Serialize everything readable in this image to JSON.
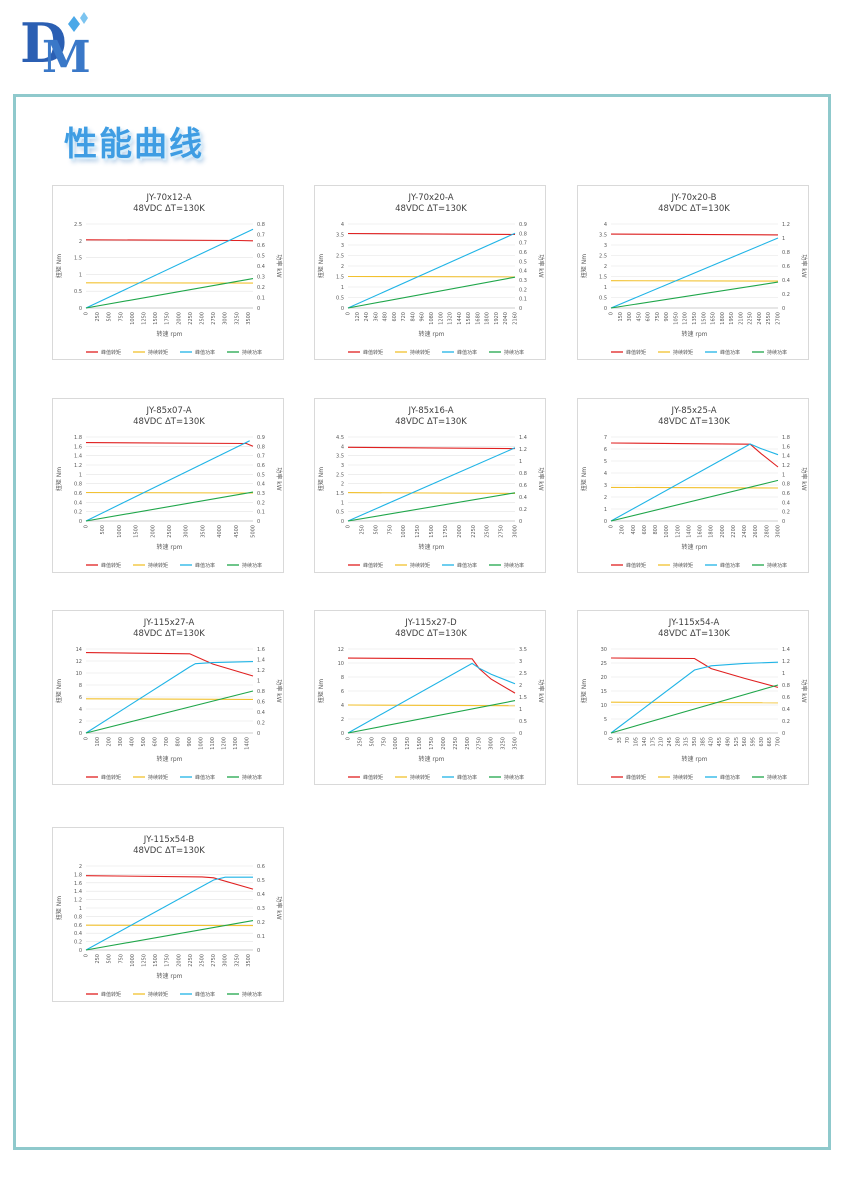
{
  "page": {
    "heading": "性能曲线",
    "logo_text": "DM",
    "colors": {
      "frame": "#8fc9cc",
      "logo": "#2b5fb3",
      "heading": "#3f9de3"
    }
  },
  "legend_labels": [
    "峰值转矩",
    "持续转矩",
    "峰值功率",
    "持续功率"
  ],
  "series_colors": [
    "#e02020",
    "#f2c12e",
    "#1fb4e6",
    "#1fa64a"
  ],
  "chart_data": [
    {
      "type": "line",
      "title": "JY-70x12-A",
      "subtitle": "48VDC ΔT=130K",
      "xlabel": "转速 rpm",
      "ylabel": "扭矩 Nm",
      "y2label": "功率 kW",
      "x_ticks": [
        "0",
        "250",
        "500",
        "750",
        "1000",
        "1250",
        "1500",
        "1750",
        "2000",
        "2250",
        "2500",
        "2750",
        "3000",
        "3250",
        "3500"
      ],
      "xlim": [
        0,
        3600
      ],
      "y_ticks": [
        "0",
        "0.5",
        "1",
        "1.5",
        "2",
        "2.5"
      ],
      "ylim": [
        0,
        2.5
      ],
      "y2_ticks": [
        "0",
        "0.1",
        "0.2",
        "0.3",
        "0.4",
        "0.5",
        "0.6",
        "0.7",
        "0.8"
      ],
      "y2lim": [
        0,
        0.8
      ],
      "series": [
        {
          "name": "峰值转矩",
          "axis": "left",
          "x": [
            0,
            3300,
            3600
          ],
          "y": [
            2.03,
            2.01,
            2.0
          ]
        },
        {
          "name": "持续转矩",
          "axis": "left",
          "x": [
            0,
            3600
          ],
          "y": [
            0.75,
            0.74
          ]
        },
        {
          "name": "峰值功率",
          "axis": "right",
          "x": [
            0,
            3600
          ],
          "y": [
            0,
            0.75
          ]
        },
        {
          "name": "持续功率",
          "axis": "right",
          "x": [
            0,
            3600
          ],
          "y": [
            0,
            0.28
          ]
        }
      ]
    },
    {
      "type": "line",
      "title": "JY-70x20-A",
      "subtitle": "48VDC ΔT=130K",
      "xlabel": "转速 rpm",
      "ylabel": "扭矩 Nm",
      "y2label": "功率 kW",
      "x_ticks": [
        "0",
        "120",
        "240",
        "360",
        "480",
        "600",
        "720",
        "840",
        "960",
        "1080",
        "1200",
        "1320",
        "1440",
        "1560",
        "1680",
        "1800",
        "1920",
        "2040",
        "2160"
      ],
      "xlim": [
        0,
        2160
      ],
      "y_ticks": [
        "0",
        "0.5",
        "1",
        "1.5",
        "2",
        "2.5",
        "3",
        "3.5",
        "4"
      ],
      "ylim": [
        0,
        4
      ],
      "y2_ticks": [
        "0",
        "0.1",
        "0.2",
        "0.3",
        "0.4",
        "0.5",
        "0.6",
        "0.7",
        "0.8",
        "0.9"
      ],
      "y2lim": [
        0,
        0.9
      ],
      "series": [
        {
          "name": "峰值转矩",
          "axis": "left",
          "x": [
            0,
            2160
          ],
          "y": [
            3.55,
            3.5
          ]
        },
        {
          "name": "持续转矩",
          "axis": "left",
          "x": [
            0,
            2160
          ],
          "y": [
            1.5,
            1.48
          ]
        },
        {
          "name": "峰值功率",
          "axis": "right",
          "x": [
            0,
            2160
          ],
          "y": [
            0,
            0.8
          ]
        },
        {
          "name": "持续功率",
          "axis": "right",
          "x": [
            0,
            2160
          ],
          "y": [
            0,
            0.33
          ]
        }
      ]
    },
    {
      "type": "line",
      "title": "JY-70x20-B",
      "subtitle": "48VDC ΔT=130K",
      "xlabel": "转速 rpm",
      "ylabel": "扭矩 Nm",
      "y2label": "功率 kW",
      "x_ticks": [
        "0",
        "150",
        "300",
        "450",
        "600",
        "750",
        "900",
        "1050",
        "1200",
        "1350",
        "1500",
        "1650",
        "1800",
        "1950",
        "2100",
        "2250",
        "2400",
        "2550",
        "2700"
      ],
      "xlim": [
        0,
        2700
      ],
      "y_ticks": [
        "0",
        "0.5",
        "1",
        "1.5",
        "2",
        "2.5",
        "3",
        "3.5",
        "4"
      ],
      "ylim": [
        0,
        4
      ],
      "y2_ticks": [
        "0",
        "0.2",
        "0.4",
        "0.6",
        "0.8",
        "1",
        "1.2"
      ],
      "y2lim": [
        0,
        1.2
      ],
      "series": [
        {
          "name": "峰值转矩",
          "axis": "left",
          "x": [
            0,
            2700
          ],
          "y": [
            3.52,
            3.48
          ]
        },
        {
          "name": "持续转矩",
          "axis": "left",
          "x": [
            0,
            2700
          ],
          "y": [
            1.3,
            1.28
          ]
        },
        {
          "name": "峰值功率",
          "axis": "right",
          "x": [
            0,
            2700
          ],
          "y": [
            0,
            1.0
          ]
        },
        {
          "name": "持续功率",
          "axis": "right",
          "x": [
            0,
            2700
          ],
          "y": [
            0,
            0.37
          ]
        }
      ]
    },
    {
      "type": "line",
      "title": "JY-85x07-A",
      "subtitle": "48VDC ΔT=130K",
      "xlabel": "转速 rpm",
      "ylabel": "扭矩 Nm",
      "y2label": "功率 kW",
      "x_ticks": [
        "0",
        "500",
        "1000",
        "1500",
        "2000",
        "2500",
        "3000",
        "3500",
        "4000",
        "4500",
        "5000"
      ],
      "xlim": [
        0,
        5000
      ],
      "y_ticks": [
        "0",
        "0.2",
        "0.4",
        "0.6",
        "0.8",
        "1",
        "1.2",
        "1.4",
        "1.6",
        "1.8"
      ],
      "ylim": [
        0,
        1.8
      ],
      "y2_ticks": [
        "0",
        "0.1",
        "0.2",
        "0.3",
        "0.4",
        "0.5",
        "0.6",
        "0.7",
        "0.8",
        "0.9"
      ],
      "y2lim": [
        0,
        0.9
      ],
      "series": [
        {
          "name": "峰值转矩",
          "axis": "left",
          "x": [
            0,
            4800,
            5000
          ],
          "y": [
            1.68,
            1.66,
            1.6
          ]
        },
        {
          "name": "持续转矩",
          "axis": "left",
          "x": [
            0,
            5000
          ],
          "y": [
            0.61,
            0.6
          ]
        },
        {
          "name": "峰值功率",
          "axis": "right",
          "x": [
            0,
            4900
          ],
          "y": [
            0,
            0.86
          ]
        },
        {
          "name": "持续功率",
          "axis": "right",
          "x": [
            0,
            5000
          ],
          "y": [
            0,
            0.31
          ]
        }
      ]
    },
    {
      "type": "line",
      "title": "JY-85x16-A",
      "subtitle": "48VDC ΔT=130K",
      "xlabel": "转速 rpm",
      "ylabel": "扭矩 Nm",
      "y2label": "功率 kW",
      "x_ticks": [
        "0",
        "250",
        "500",
        "750",
        "1000",
        "1250",
        "1500",
        "1750",
        "2000",
        "2250",
        "2500",
        "2750",
        "3000"
      ],
      "xlim": [
        0,
        3000
      ],
      "y_ticks": [
        "0",
        "0.5",
        "1",
        "1.5",
        "2",
        "2.5",
        "3",
        "3.5",
        "4",
        "4.5"
      ],
      "ylim": [
        0,
        4.5
      ],
      "y2_ticks": [
        "0",
        "0.2",
        "0.4",
        "0.6",
        "0.8",
        "1",
        "1.2",
        "1.4"
      ],
      "y2lim": [
        0,
        1.4
      ],
      "series": [
        {
          "name": "峰值转矩",
          "axis": "left",
          "x": [
            0,
            3000
          ],
          "y": [
            3.95,
            3.88
          ]
        },
        {
          "name": "持续转矩",
          "axis": "left",
          "x": [
            0,
            3000
          ],
          "y": [
            1.52,
            1.48
          ]
        },
        {
          "name": "峰值功率",
          "axis": "right",
          "x": [
            0,
            3000
          ],
          "y": [
            0,
            1.22
          ]
        },
        {
          "name": "持续功率",
          "axis": "right",
          "x": [
            0,
            3000
          ],
          "y": [
            0,
            0.47
          ]
        }
      ]
    },
    {
      "type": "line",
      "title": "JY-85x25-A",
      "subtitle": "48VDC ΔT=130K",
      "xlabel": "转速 rpm",
      "ylabel": "扭矩 Nm",
      "y2label": "功率 kW",
      "x_ticks": [
        "0",
        "200",
        "400",
        "600",
        "800",
        "1000",
        "1200",
        "1400",
        "1600",
        "1800",
        "2000",
        "2200",
        "2400",
        "2600",
        "2800",
        "3000"
      ],
      "xlim": [
        0,
        3000
      ],
      "y_ticks": [
        "0",
        "1",
        "2",
        "3",
        "4",
        "5",
        "6",
        "7"
      ],
      "ylim": [
        0,
        7
      ],
      "y2_ticks": [
        "0",
        "0.2",
        "0.4",
        "0.6",
        "0.8",
        "1",
        "1.2",
        "1.4",
        "1.6",
        "1.8"
      ],
      "y2lim": [
        0,
        1.8
      ],
      "series": [
        {
          "name": "峰值转矩",
          "axis": "left",
          "x": [
            0,
            2500,
            2700,
            3000
          ],
          "y": [
            6.5,
            6.4,
            5.6,
            4.5
          ]
        },
        {
          "name": "持续转矩",
          "axis": "left",
          "x": [
            0,
            3000
          ],
          "y": [
            2.8,
            2.75
          ]
        },
        {
          "name": "峰值功率",
          "axis": "right",
          "x": [
            0,
            2500,
            2700,
            3000
          ],
          "y": [
            0,
            1.65,
            1.55,
            1.42
          ]
        },
        {
          "name": "持续功率",
          "axis": "right",
          "x": [
            0,
            3000
          ],
          "y": [
            0,
            0.87
          ]
        }
      ]
    },
    {
      "type": "line",
      "title": "JY-115x27-A",
      "subtitle": "48VDC ΔT=130K",
      "xlabel": "转速 rpm",
      "ylabel": "扭矩 Nm",
      "y2label": "功率 kW",
      "x_ticks": [
        "0",
        "100",
        "200",
        "300",
        "400",
        "500",
        "600",
        "700",
        "800",
        "900",
        "1000",
        "1100",
        "1200",
        "1300",
        "1400"
      ],
      "xlim": [
        0,
        1450
      ],
      "y_ticks": [
        "0",
        "2",
        "4",
        "6",
        "8",
        "10",
        "12",
        "14"
      ],
      "ylim": [
        0,
        14
      ],
      "y2_ticks": [
        "0",
        "0.2",
        "0.4",
        "0.6",
        "0.8",
        "1",
        "1.2",
        "1.4",
        "1.6"
      ],
      "y2lim": [
        0,
        1.6
      ],
      "series": [
        {
          "name": "峰值转矩",
          "axis": "left",
          "x": [
            0,
            900,
            1100,
            1450
          ],
          "y": [
            13.4,
            13.2,
            11.5,
            9.5
          ]
        },
        {
          "name": "持续转矩",
          "axis": "left",
          "x": [
            0,
            1450
          ],
          "y": [
            5.7,
            5.6
          ]
        },
        {
          "name": "峰值功率",
          "axis": "right",
          "x": [
            0,
            900,
            950,
            1100,
            1450
          ],
          "y": [
            0,
            1.26,
            1.32,
            1.34,
            1.36
          ]
        },
        {
          "name": "持续功率",
          "axis": "right",
          "x": [
            0,
            1450
          ],
          "y": [
            0,
            0.8
          ]
        }
      ]
    },
    {
      "type": "line",
      "title": "JY-115x27-D",
      "subtitle": "48VDC ΔT=130K",
      "xlabel": "转速 rpm",
      "ylabel": "扭矩 Nm",
      "y2label": "功率 kW",
      "x_ticks": [
        "0",
        "250",
        "500",
        "750",
        "1000",
        "1250",
        "1500",
        "1750",
        "2000",
        "2250",
        "2500",
        "2750",
        "3000",
        "3250",
        "3500"
      ],
      "xlim": [
        0,
        3500
      ],
      "y_ticks": [
        "0",
        "2",
        "4",
        "6",
        "8",
        "10",
        "12"
      ],
      "ylim": [
        0,
        12
      ],
      "y2_ticks": [
        "0",
        "0.5",
        "1",
        "1.5",
        "2",
        "2.5",
        "3",
        "3.5"
      ],
      "y2lim": [
        0,
        3.5
      ],
      "series": [
        {
          "name": "峰值转矩",
          "axis": "left",
          "x": [
            0,
            2600,
            2750,
            3000,
            3500
          ],
          "y": [
            10.7,
            10.6,
            9.2,
            7.7,
            5.7
          ]
        },
        {
          "name": "持续转矩",
          "axis": "left",
          "x": [
            0,
            3500
          ],
          "y": [
            4.0,
            3.9
          ]
        },
        {
          "name": "峰值功率",
          "axis": "right",
          "x": [
            0,
            2600,
            2750,
            3000,
            3500
          ],
          "y": [
            0,
            2.9,
            2.7,
            2.45,
            2.05
          ]
        },
        {
          "name": "持续功率",
          "axis": "right",
          "x": [
            0,
            3500
          ],
          "y": [
            0,
            1.35
          ]
        }
      ]
    },
    {
      "type": "line",
      "title": "JY-115x54-A",
      "subtitle": "48VDC ΔT=130K",
      "xlabel": "转速 rpm",
      "ylabel": "扭矩 Nm",
      "y2label": "功率 kW",
      "x_ticks": [
        "0",
        "35",
        "70",
        "105",
        "140",
        "175",
        "210",
        "245",
        "280",
        "315",
        "350",
        "385",
        "420",
        "455",
        "490",
        "525",
        "560",
        "595",
        "630",
        "665",
        "700"
      ],
      "xlim": [
        0,
        700
      ],
      "y_ticks": [
        "0",
        "5",
        "10",
        "15",
        "20",
        "25",
        "30"
      ],
      "ylim": [
        0,
        30
      ],
      "y2_ticks": [
        "0",
        "0.2",
        "0.4",
        "0.6",
        "0.8",
        "1",
        "1.2",
        "1.4"
      ],
      "y2lim": [
        0,
        1.4
      ],
      "series": [
        {
          "name": "峰值转矩",
          "axis": "left",
          "x": [
            0,
            350,
            420,
            560,
            700
          ],
          "y": [
            26.8,
            26.6,
            23,
            19.5,
            16.3
          ]
        },
        {
          "name": "持续转矩",
          "axis": "left",
          "x": [
            0,
            700
          ],
          "y": [
            11.0,
            10.8
          ]
        },
        {
          "name": "峰值功率",
          "axis": "right",
          "x": [
            0,
            350,
            420,
            560,
            700
          ],
          "y": [
            0,
            1.05,
            1.12,
            1.16,
            1.18
          ]
        },
        {
          "name": "持续功率",
          "axis": "right",
          "x": [
            0,
            700
          ],
          "y": [
            0,
            0.8
          ]
        }
      ]
    },
    {
      "type": "line",
      "title": "JY-115x54-B",
      "subtitle": "48VDC ΔT=130K",
      "xlabel": "转速 rpm",
      "ylabel": "扭矩 Nm",
      "y2label": "功率 kW",
      "x_ticks": [
        "0",
        "250",
        "500",
        "750",
        "1000",
        "1250",
        "1500",
        "1750",
        "2000",
        "2250",
        "2500",
        "2750",
        "3000",
        "3250",
        "3500"
      ],
      "xlim": [
        0,
        3600
      ],
      "y_ticks": [
        "0",
        "0.2",
        "0.4",
        "0.6",
        "0.8",
        "1",
        "1.2",
        "1.4",
        "1.6",
        "1.8",
        "2"
      ],
      "ylim": [
        0,
        2
      ],
      "y2_ticks": [
        "0",
        "0.1",
        "0.2",
        "0.3",
        "0.4",
        "0.5",
        "0.6"
      ],
      "y2lim": [
        0,
        0.6
      ],
      "series": [
        {
          "name": "峰值转矩",
          "axis": "left",
          "x": [
            0,
            2500,
            2750,
            3600
          ],
          "y": [
            1.77,
            1.74,
            1.72,
            1.45
          ]
        },
        {
          "name": "持续转矩",
          "axis": "left",
          "x": [
            0,
            3600
          ],
          "y": [
            0.59,
            0.58
          ]
        },
        {
          "name": "峰值功率",
          "axis": "right",
          "x": [
            0,
            2750,
            3000,
            3600
          ],
          "y": [
            0,
            0.5,
            0.52,
            0.52
          ]
        },
        {
          "name": "持续功率",
          "axis": "right",
          "x": [
            0,
            3600
          ],
          "y": [
            0,
            0.21
          ]
        }
      ]
    }
  ]
}
